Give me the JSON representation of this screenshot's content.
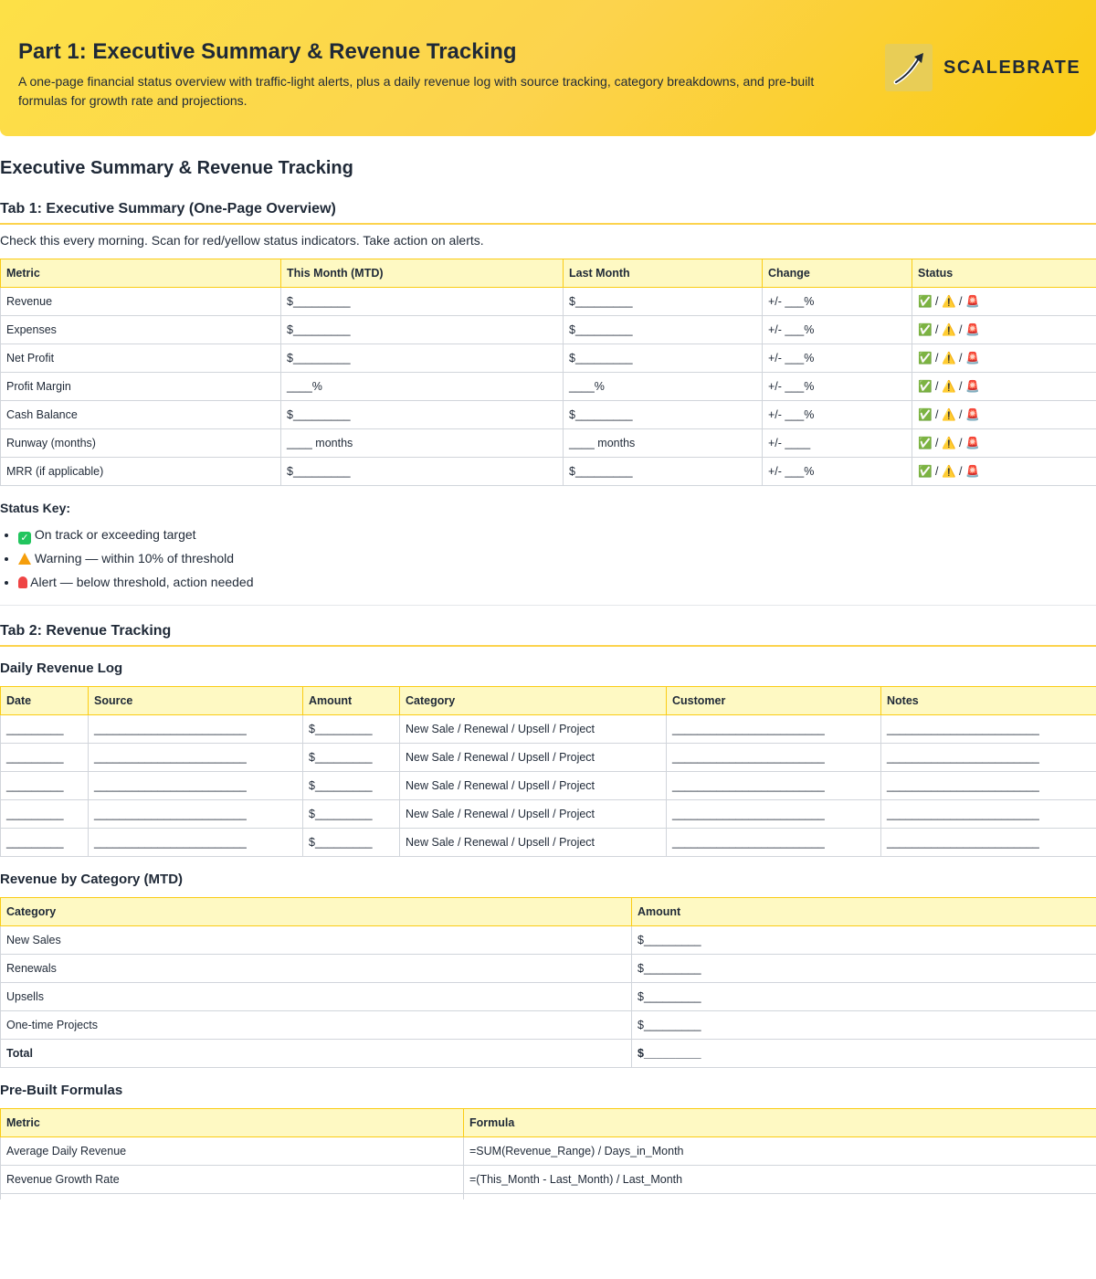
{
  "header": {
    "title": "Part 1: Executive Summary & Revenue Tracking",
    "description": "A one-page financial status overview with traffic-light alerts, plus a daily revenue log with source tracking, category breakdowns, and pre-built formulas for growth rate and projections.",
    "brand": "SCALEBRATE",
    "logo_icon": "rising-arrow-icon"
  },
  "page_title": "Executive Summary & Revenue Tracking",
  "tab1": {
    "heading": "Tab 1: Executive Summary (One-Page Overview)",
    "intro": "Check this every morning. Scan for red/yellow status indicators. Take action on alerts.",
    "columns": [
      "Metric",
      "This Month (MTD)",
      "Last Month",
      "Change",
      "Status"
    ],
    "rows": [
      [
        "Revenue",
        "$_________",
        "$_________",
        "+/- ___%",
        "✅ / ⚠️ / 🚨"
      ],
      [
        "Expenses",
        "$_________",
        "$_________",
        "+/- ___%",
        "✅ / ⚠️ / 🚨"
      ],
      [
        "Net Profit",
        "$_________",
        "$_________",
        "+/- ___%",
        "✅ / ⚠️ / 🚨"
      ],
      [
        "Profit Margin",
        "____%",
        "____%",
        "+/- ___%",
        "✅ / ⚠️ / 🚨"
      ],
      [
        "Cash Balance",
        "$_________",
        "$_________",
        "+/- ___%",
        "✅ / ⚠️ / 🚨"
      ],
      [
        "Runway (months)",
        "____ months",
        "____ months",
        "+/- ____",
        "✅ / ⚠️ / 🚨"
      ],
      [
        "MRR (if applicable)",
        "$_________",
        "$_________",
        "+/- ___%",
        "✅ / ⚠️ / 🚨"
      ]
    ],
    "status_key": {
      "label": "Status Key:",
      "items": [
        {
          "icon": "check-icon",
          "text": "On track or exceeding target"
        },
        {
          "icon": "warning-icon",
          "text": "Warning — within 10% of threshold"
        },
        {
          "icon": "alert-siren-icon",
          "text": "Alert — below threshold, action needed"
        }
      ]
    }
  },
  "tab2": {
    "heading": "Tab 2: Revenue Tracking",
    "daily_log": {
      "heading": "Daily Revenue Log",
      "columns": [
        "Date",
        "Source",
        "Amount",
        "Category",
        "Customer",
        "Notes"
      ],
      "rows": [
        [
          "_________",
          "________________________",
          "$_________",
          "New Sale / Renewal / Upsell / Project",
          "________________________",
          "________________________"
        ],
        [
          "_________",
          "________________________",
          "$_________",
          "New Sale / Renewal / Upsell / Project",
          "________________________",
          "________________________"
        ],
        [
          "_________",
          "________________________",
          "$_________",
          "New Sale / Renewal / Upsell / Project",
          "________________________",
          "________________________"
        ],
        [
          "_________",
          "________________________",
          "$_________",
          "New Sale / Renewal / Upsell / Project",
          "________________________",
          "________________________"
        ],
        [
          "_________",
          "________________________",
          "$_________",
          "New Sale / Renewal / Upsell / Project",
          "________________________",
          "________________________"
        ]
      ]
    },
    "by_category": {
      "heading": "Revenue by Category (MTD)",
      "columns": [
        "Category",
        "Amount"
      ],
      "rows": [
        [
          "New Sales",
          "$_________"
        ],
        [
          "Renewals",
          "$_________"
        ],
        [
          "Upsells",
          "$_________"
        ],
        [
          "One-time Projects",
          "$_________"
        ],
        [
          "Total",
          "$_________"
        ]
      ]
    },
    "formulas": {
      "heading": "Pre-Built Formulas",
      "columns": [
        "Metric",
        "Formula"
      ],
      "rows": [
        [
          "Average Daily Revenue",
          "=SUM(Revenue_Range) / Days_in_Month"
        ],
        [
          "Revenue Growth Rate",
          "=(This_Month - Last_Month) / Last_Month"
        ]
      ]
    }
  }
}
